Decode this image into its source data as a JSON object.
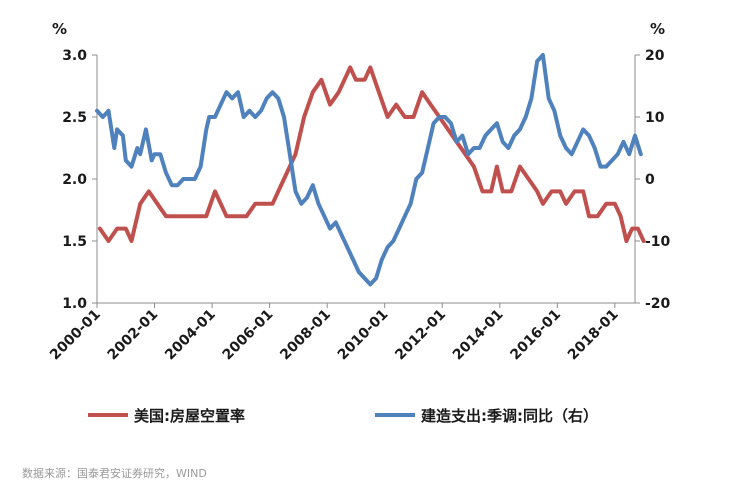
{
  "chart_data": {
    "type": "line",
    "y_left": {
      "unit": "%",
      "min": 1.0,
      "max": 3.0,
      "ticks": [
        "3.0",
        "2.5",
        "2.0",
        "1.5",
        "1.0"
      ]
    },
    "y_right": {
      "unit": "%",
      "min": -20,
      "max": 20,
      "ticks": [
        "20",
        "10",
        "0",
        "-10",
        "-20"
      ]
    },
    "x": {
      "min": 2000.0,
      "max": 2018.7,
      "tick_labels": [
        "2000-01",
        "2002-01",
        "2004-01",
        "2006-01",
        "2008-01",
        "2010-01",
        "2012-01",
        "2014-01",
        "2016-01",
        "2018-01"
      ],
      "tick_years": [
        2000,
        2002,
        2004,
        2006,
        2008,
        2010,
        2012,
        2014,
        2016,
        2018
      ]
    },
    "grid": false,
    "legend_position": "bottom",
    "series": [
      {
        "name": "美国:房屋空置率",
        "color": "#c0504d",
        "axis": "left",
        "points": [
          [
            2000.1,
            1.6
          ],
          [
            2000.4,
            1.5
          ],
          [
            2000.7,
            1.6
          ],
          [
            2001.0,
            1.6
          ],
          [
            2001.2,
            1.5
          ],
          [
            2001.5,
            1.8
          ],
          [
            2001.8,
            1.9
          ],
          [
            2002.1,
            1.8
          ],
          [
            2002.4,
            1.7
          ],
          [
            2002.8,
            1.7
          ],
          [
            2003.2,
            1.7
          ],
          [
            2003.6,
            1.7
          ],
          [
            2003.8,
            1.7
          ],
          [
            2004.1,
            1.9
          ],
          [
            2004.5,
            1.7
          ],
          [
            2004.8,
            1.7
          ],
          [
            2005.2,
            1.7
          ],
          [
            2005.5,
            1.8
          ],
          [
            2005.8,
            1.8
          ],
          [
            2006.1,
            1.8
          ],
          [
            2006.5,
            2.0
          ],
          [
            2006.9,
            2.2
          ],
          [
            2007.2,
            2.5
          ],
          [
            2007.5,
            2.7
          ],
          [
            2007.8,
            2.8
          ],
          [
            2008.1,
            2.6
          ],
          [
            2008.4,
            2.7
          ],
          [
            2008.8,
            2.9
          ],
          [
            2009.0,
            2.8
          ],
          [
            2009.3,
            2.8
          ],
          [
            2009.5,
            2.9
          ],
          [
            2009.8,
            2.7
          ],
          [
            2010.1,
            2.5
          ],
          [
            2010.4,
            2.6
          ],
          [
            2010.7,
            2.5
          ],
          [
            2011.0,
            2.5
          ],
          [
            2011.3,
            2.7
          ],
          [
            2011.6,
            2.6
          ],
          [
            2011.9,
            2.5
          ],
          [
            2012.2,
            2.4
          ],
          [
            2012.5,
            2.3
          ],
          [
            2012.8,
            2.2
          ],
          [
            2013.1,
            2.1
          ],
          [
            2013.4,
            1.9
          ],
          [
            2013.7,
            1.9
          ],
          [
            2013.9,
            2.1
          ],
          [
            2014.1,
            1.9
          ],
          [
            2014.4,
            1.9
          ],
          [
            2014.7,
            2.1
          ],
          [
            2015.0,
            2.0
          ],
          [
            2015.3,
            1.9
          ],
          [
            2015.5,
            1.8
          ],
          [
            2015.8,
            1.9
          ],
          [
            2016.1,
            1.9
          ],
          [
            2016.3,
            1.8
          ],
          [
            2016.6,
            1.9
          ],
          [
            2016.9,
            1.9
          ],
          [
            2017.1,
            1.7
          ],
          [
            2017.4,
            1.7
          ],
          [
            2017.7,
            1.8
          ],
          [
            2018.0,
            1.8
          ],
          [
            2018.2,
            1.7
          ],
          [
            2018.4,
            1.5
          ],
          [
            2018.6,
            1.6
          ],
          [
            2018.8,
            1.6
          ],
          [
            2019.0,
            1.5
          ]
        ]
      },
      {
        "name": "建造支出:季调:同比（右）",
        "color": "#4f81bd",
        "axis": "right",
        "points": [
          [
            2000.0,
            11
          ],
          [
            2000.2,
            10
          ],
          [
            2000.4,
            11
          ],
          [
            2000.6,
            5
          ],
          [
            2000.7,
            8
          ],
          [
            2000.9,
            7
          ],
          [
            2001.0,
            3
          ],
          [
            2001.2,
            2
          ],
          [
            2001.4,
            5
          ],
          [
            2001.5,
            4
          ],
          [
            2001.7,
            8
          ],
          [
            2001.9,
            3
          ],
          [
            2002.0,
            4
          ],
          [
            2002.2,
            4
          ],
          [
            2002.4,
            1
          ],
          [
            2002.6,
            -1
          ],
          [
            2002.8,
            -1
          ],
          [
            2003.0,
            0
          ],
          [
            2003.2,
            0
          ],
          [
            2003.4,
            0
          ],
          [
            2003.6,
            2
          ],
          [
            2003.8,
            8
          ],
          [
            2003.9,
            10
          ],
          [
            2004.1,
            10
          ],
          [
            2004.3,
            12
          ],
          [
            2004.5,
            14
          ],
          [
            2004.7,
            13
          ],
          [
            2004.9,
            14
          ],
          [
            2005.1,
            10
          ],
          [
            2005.3,
            11
          ],
          [
            2005.5,
            10
          ],
          [
            2005.7,
            11
          ],
          [
            2005.9,
            13
          ],
          [
            2006.1,
            14
          ],
          [
            2006.3,
            13
          ],
          [
            2006.5,
            10
          ],
          [
            2006.7,
            4
          ],
          [
            2006.9,
            -2
          ],
          [
            2007.1,
            -4
          ],
          [
            2007.3,
            -3
          ],
          [
            2007.5,
            -1
          ],
          [
            2007.7,
            -4
          ],
          [
            2007.9,
            -6
          ],
          [
            2008.1,
            -8
          ],
          [
            2008.3,
            -7
          ],
          [
            2008.5,
            -9
          ],
          [
            2008.7,
            -11
          ],
          [
            2008.9,
            -13
          ],
          [
            2009.1,
            -15
          ],
          [
            2009.3,
            -16
          ],
          [
            2009.5,
            -17
          ],
          [
            2009.7,
            -16
          ],
          [
            2009.9,
            -13
          ],
          [
            2010.1,
            -11
          ],
          [
            2010.3,
            -10
          ],
          [
            2010.5,
            -8
          ],
          [
            2010.7,
            -6
          ],
          [
            2010.9,
            -4
          ],
          [
            2011.1,
            0
          ],
          [
            2011.3,
            1
          ],
          [
            2011.5,
            5
          ],
          [
            2011.7,
            9
          ],
          [
            2011.9,
            10
          ],
          [
            2012.1,
            10
          ],
          [
            2012.3,
            9
          ],
          [
            2012.5,
            6
          ],
          [
            2012.7,
            7
          ],
          [
            2012.9,
            4
          ],
          [
            2013.1,
            5
          ],
          [
            2013.3,
            5
          ],
          [
            2013.5,
            7
          ],
          [
            2013.7,
            8
          ],
          [
            2013.9,
            9
          ],
          [
            2014.1,
            6
          ],
          [
            2014.3,
            5
          ],
          [
            2014.5,
            7
          ],
          [
            2014.7,
            8
          ],
          [
            2014.9,
            10
          ],
          [
            2015.1,
            13
          ],
          [
            2015.3,
            19
          ],
          [
            2015.5,
            20
          ],
          [
            2015.7,
            13
          ],
          [
            2015.9,
            11
          ],
          [
            2016.1,
            7
          ],
          [
            2016.3,
            5
          ],
          [
            2016.5,
            4
          ],
          [
            2016.7,
            6
          ],
          [
            2016.9,
            8
          ],
          [
            2017.1,
            7
          ],
          [
            2017.3,
            5
          ],
          [
            2017.5,
            2
          ],
          [
            2017.7,
            2
          ],
          [
            2017.9,
            3
          ],
          [
            2018.1,
            4
          ],
          [
            2018.3,
            6
          ],
          [
            2018.5,
            4
          ],
          [
            2018.7,
            7
          ],
          [
            2018.9,
            4
          ]
        ]
      }
    ]
  },
  "source_text": "数据来源：国泰君安证券研究，WIND"
}
